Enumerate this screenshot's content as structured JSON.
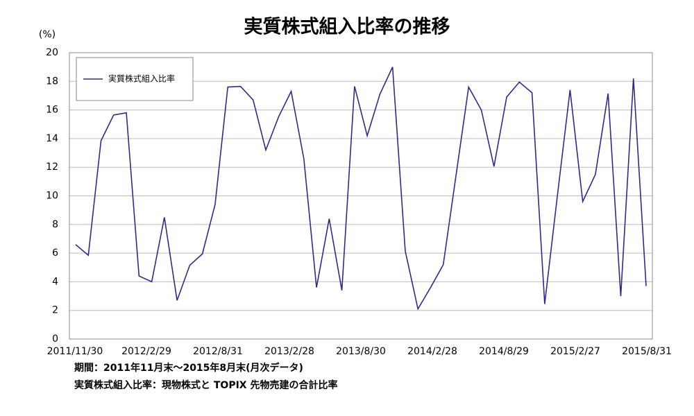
{
  "chart_data": {
    "type": "line",
    "title": "実質株式組入比率の推移",
    "y_unit": "(%)",
    "categories": [
      "2011/11/30",
      null,
      null,
      null,
      null,
      null,
      "2012/2/29",
      null,
      null,
      null,
      null,
      null,
      "2012/8/31",
      null,
      null,
      null,
      null,
      null,
      "2013/2/28",
      null,
      null,
      null,
      null,
      null,
      "2013/8/30",
      null,
      null,
      null,
      null,
      null,
      "2014/2/28",
      null,
      null,
      null,
      null,
      null,
      "2014/8/29",
      null,
      null,
      null,
      null,
      null,
      "2015/2/27",
      null,
      null,
      "2015/8/31"
    ],
    "series": [
      {
        "name": "実質株式組入比率",
        "color": "#2b2b8f",
        "values": [
          6.6,
          5.85,
          13.85,
          15.65,
          15.8,
          4.4,
          4.0,
          8.5,
          2.7,
          5.15,
          5.95,
          9.4,
          17.6,
          17.65,
          16.7,
          13.2,
          15.5,
          17.3,
          12.6,
          3.6,
          8.4,
          3.4,
          17.65,
          14.2,
          17.1,
          19.0,
          6.15,
          2.1,
          3.6,
          5.2,
          11.4,
          17.6,
          16.0,
          12.05,
          16.9,
          17.95,
          17.2,
          2.45,
          10.0,
          17.4,
          9.6,
          11.5,
          17.15,
          3.0,
          18.2,
          3.7
        ]
      }
    ],
    "ylim": [
      0,
      20
    ],
    "yticks": [
      0,
      2,
      4,
      6,
      8,
      10,
      12,
      14,
      16,
      18,
      20
    ],
    "grid": true,
    "legend": "upper left",
    "notes": [
      "期間：2011年11月末～2015年8月末(月次データ)",
      "実質株式組入比率：現物株式と TOPIX 先物売建の合計比率"
    ]
  }
}
